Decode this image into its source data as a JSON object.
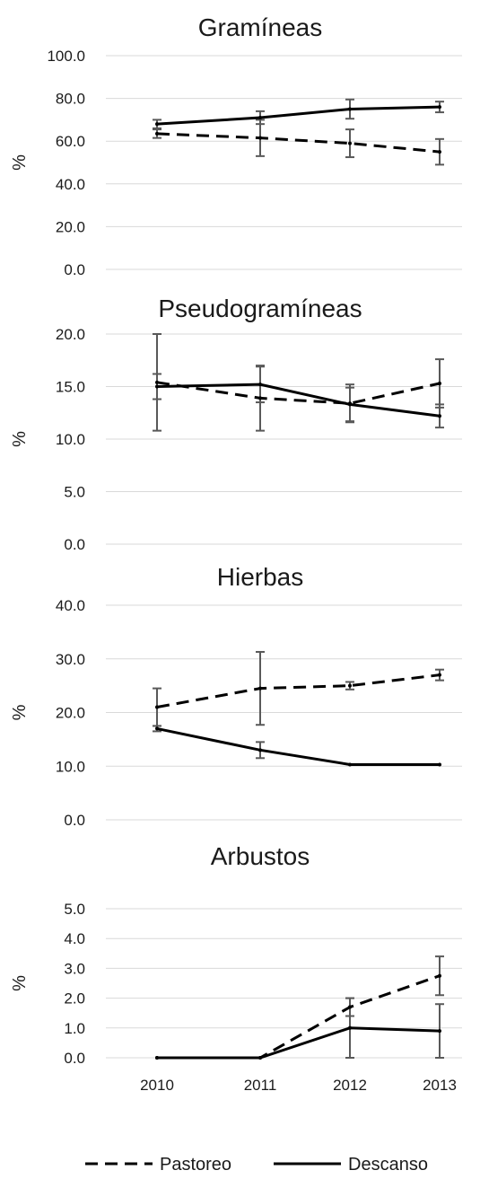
{
  "chart_data": {
    "type": "line",
    "categories": [
      "2010",
      "2011",
      "2012",
      "2013"
    ],
    "legend": {
      "position": "bottom",
      "entries": [
        {
          "name": "Pastoreo",
          "style": "dashed"
        },
        {
          "name": "Descanso",
          "style": "solid"
        }
      ]
    },
    "colors": {
      "line": "#000000",
      "error_bar": "#595959",
      "grid": "#d9d9d9"
    },
    "panels": [
      {
        "title": "Gramíneas",
        "ylabel": "%",
        "ylim": [
          0,
          100
        ],
        "yticks": [
          "0.0",
          "20.0",
          "40.0",
          "60.0",
          "80.0",
          "100.0"
        ],
        "grid": true,
        "series": [
          {
            "name": "Pastoreo",
            "values": [
              63.5,
              61.5,
              59.0,
              55.0
            ],
            "error": [
              2.0,
              8.5,
              6.5,
              6.0
            ]
          },
          {
            "name": "Descanso",
            "values": [
              68.0,
              71.0,
              75.0,
              76.0
            ],
            "error": [
              2.0,
              3.0,
              4.5,
              2.5
            ]
          }
        ]
      },
      {
        "title": "Pseudogramíneas",
        "ylabel": "%",
        "ylim": [
          0,
          20
        ],
        "yticks": [
          "0.0",
          "5.0",
          "10.0",
          "15.0",
          "20.0"
        ],
        "grid": true,
        "series": [
          {
            "name": "Pastoreo",
            "values": [
              15.4,
              13.9,
              13.4,
              15.3
            ],
            "error": [
              4.6,
              3.1,
              1.8,
              2.3
            ]
          },
          {
            "name": "Descanso",
            "values": [
              15.0,
              15.2,
              13.3,
              12.2
            ],
            "error": [
              1.2,
              1.7,
              1.6,
              1.1
            ]
          }
        ]
      },
      {
        "title": "Hierbas",
        "ylabel": "%",
        "ylim": [
          0,
          40
        ],
        "yticks": [
          "0.0",
          "10.0",
          "20.0",
          "30.0",
          "40.0"
        ],
        "grid": true,
        "series": [
          {
            "name": "Pastoreo",
            "values": [
              21.0,
              24.5,
              25.0,
              27.0
            ],
            "error": [
              3.5,
              6.8,
              0.7,
              1.0
            ]
          },
          {
            "name": "Descanso",
            "values": [
              17.0,
              13.0,
              10.3,
              10.3
            ],
            "error": [
              0.5,
              1.5,
              0.0,
              0.0
            ]
          }
        ]
      },
      {
        "title": "Arbustos",
        "ylabel": "%",
        "ylim": [
          0,
          5
        ],
        "yticks": [
          "0.0",
          "1.0",
          "2.0",
          "3.0",
          "4.0",
          "5.0"
        ],
        "grid": true,
        "series": [
          {
            "name": "Pastoreo",
            "values": [
              0.0,
              0.0,
              1.7,
              2.75
            ],
            "error": [
              0.0,
              0.0,
              0.3,
              0.65
            ]
          },
          {
            "name": "Descanso",
            "values": [
              0.0,
              0.0,
              1.0,
              0.9
            ],
            "error": [
              0.0,
              0.0,
              1.0,
              0.9
            ]
          }
        ]
      }
    ]
  }
}
